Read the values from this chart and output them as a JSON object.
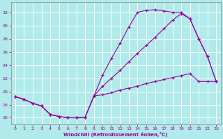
{
  "background_color": "#b0eaea",
  "line_color": "#990099",
  "grid_color": "#ffffff",
  "xlabel": "Windchill (Refroidissement éolien,°C)",
  "xlim": [
    -0.5,
    23.5
  ],
  "ylim": [
    15.0,
    33.5
  ],
  "yticks": [
    16,
    18,
    20,
    22,
    24,
    26,
    28,
    30,
    32
  ],
  "xticks": [
    0,
    1,
    2,
    3,
    4,
    5,
    6,
    7,
    8,
    9,
    10,
    11,
    12,
    13,
    14,
    15,
    16,
    17,
    18,
    19,
    20,
    21,
    22,
    23
  ],
  "curve_top_x": [
    0,
    1,
    2,
    3,
    4,
    5,
    6,
    7,
    8,
    9,
    10,
    11,
    12,
    13,
    14,
    15,
    16,
    17,
    18,
    19,
    20,
    21,
    22,
    23
  ],
  "curve_top_y": [
    19.2,
    18.8,
    18.2,
    17.8,
    16.5,
    16.2,
    16.0,
    16.0,
    16.1,
    19.3,
    22.5,
    25.0,
    27.3,
    29.8,
    32.0,
    32.3,
    32.4,
    32.2,
    32.0,
    32.0,
    31.0,
    28.0,
    25.3,
    21.5
  ],
  "curve_mid_x": [
    0,
    1,
    2,
    3,
    4,
    5,
    6,
    7,
    8,
    9,
    10,
    11,
    12,
    13,
    14,
    15,
    16,
    17,
    18,
    19,
    20,
    21,
    22,
    23
  ],
  "curve_mid_y": [
    19.2,
    18.8,
    18.2,
    17.8,
    16.5,
    16.2,
    16.0,
    16.0,
    16.1,
    19.3,
    20.8,
    22.0,
    23.2,
    24.5,
    25.8,
    27.0,
    28.2,
    29.5,
    30.8,
    31.8,
    31.0,
    28.0,
    25.3,
    21.5
  ],
  "curve_bot_x": [
    0,
    1,
    2,
    3,
    4,
    5,
    6,
    7,
    8,
    9,
    10,
    11,
    12,
    13,
    14,
    15,
    16,
    17,
    18,
    19,
    20,
    21,
    22,
    23
  ],
  "curve_bot_y": [
    19.2,
    18.8,
    18.2,
    17.8,
    16.5,
    16.2,
    16.0,
    16.0,
    16.1,
    19.3,
    19.5,
    19.8,
    20.2,
    20.5,
    20.8,
    21.2,
    21.5,
    21.8,
    22.1,
    22.4,
    22.7,
    21.5,
    21.5,
    21.5
  ]
}
